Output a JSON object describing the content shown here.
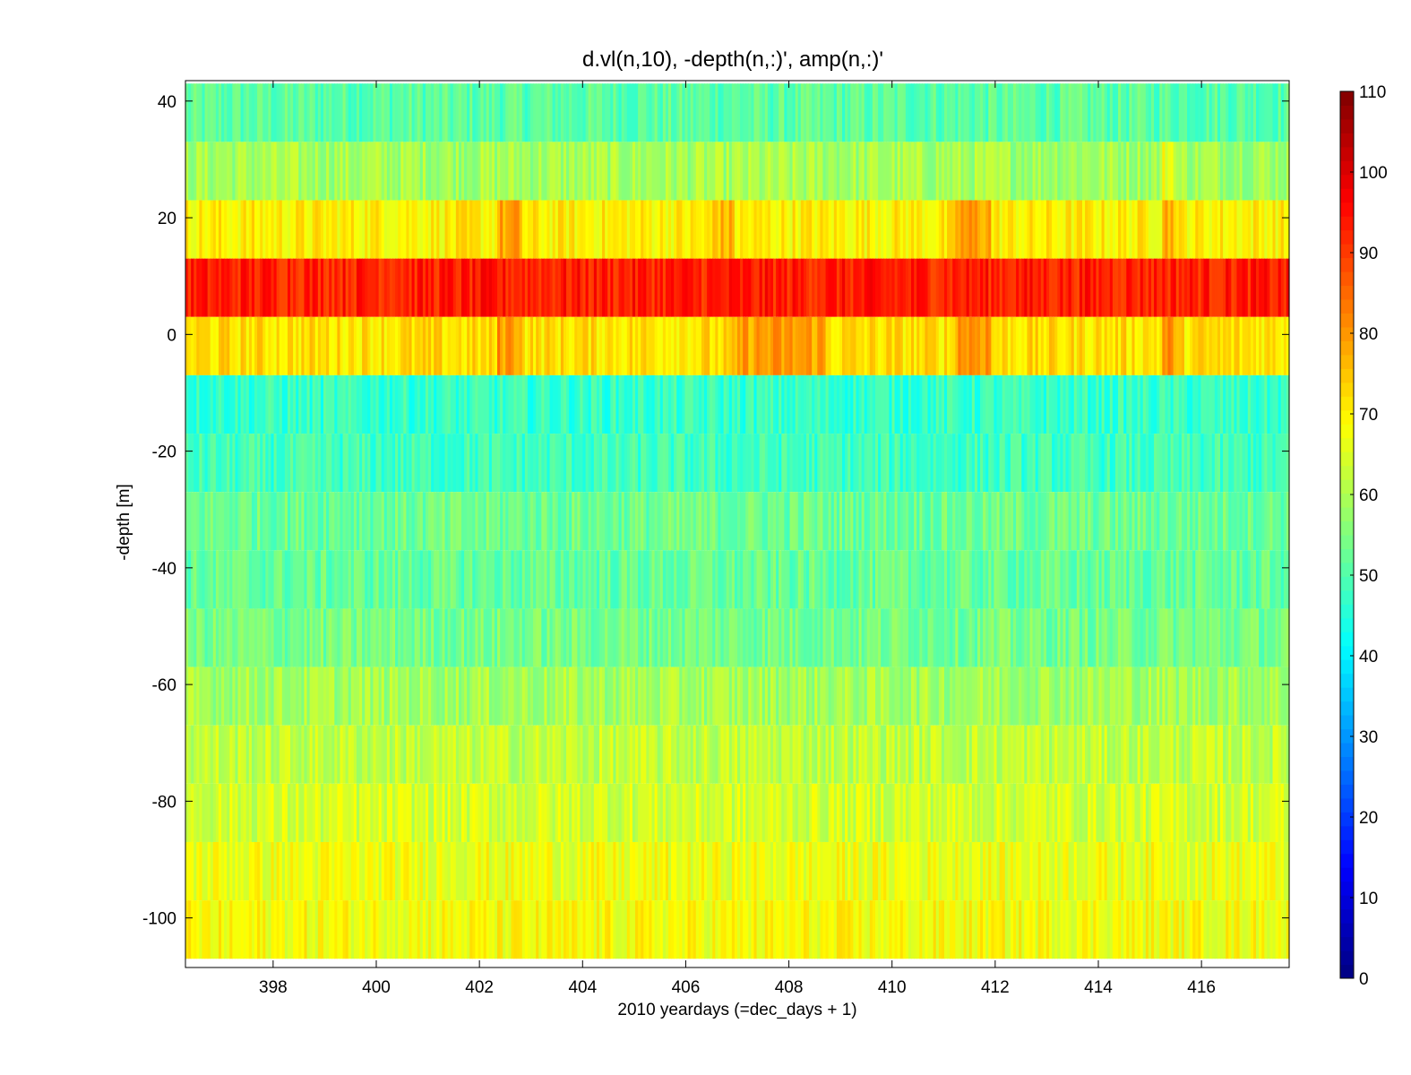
{
  "chart_data": {
    "type": "heatmap",
    "title": "d.vl(n,10), -depth(n,:)',      amp(n,:)'",
    "xlabel": "2010 yeardays (=dec_days + 1)",
    "ylabel": "-depth [m]",
    "xlim": [
      396.3,
      417.7
    ],
    "ylim": [
      -108.5,
      43.5
    ],
    "x_ticks": [
      398,
      400,
      402,
      404,
      406,
      408,
      410,
      412,
      414,
      416
    ],
    "y_ticks": [
      -100,
      -80,
      -60,
      -40,
      -20,
      0,
      20,
      40
    ],
    "colormap": "jet",
    "clim": [
      0,
      110
    ],
    "colorbar_ticks": [
      0,
      10,
      20,
      30,
      40,
      50,
      60,
      70,
      80,
      90,
      100,
      110
    ],
    "grid": false,
    "bins": [
      {
        "depth_top": 43,
        "depth_bottom": 33,
        "amp": 51
      },
      {
        "depth_top": 33,
        "depth_bottom": 23,
        "amp": 59
      },
      {
        "depth_top": 23,
        "depth_bottom": 13,
        "amp": 70
      },
      {
        "depth_top": 13,
        "depth_bottom": 3,
        "amp": 93
      },
      {
        "depth_top": 3,
        "depth_bottom": -7,
        "amp": 72
      },
      {
        "depth_top": -7,
        "depth_bottom": -17,
        "amp": 47
      },
      {
        "depth_top": -17,
        "depth_bottom": -27,
        "amp": 48
      },
      {
        "depth_top": -27,
        "depth_bottom": -37,
        "amp": 53
      },
      {
        "depth_top": -37,
        "depth_bottom": -47,
        "amp": 52
      },
      {
        "depth_top": -47,
        "depth_bottom": -57,
        "amp": 54
      },
      {
        "depth_top": -57,
        "depth_bottom": -67,
        "amp": 59
      },
      {
        "depth_top": -67,
        "depth_bottom": -77,
        "amp": 62
      },
      {
        "depth_top": -77,
        "depth_bottom": -87,
        "amp": 64
      },
      {
        "depth_top": -87,
        "depth_bottom": -97,
        "amp": 67
      },
      {
        "depth_top": -97,
        "depth_bottom": -107,
        "amp": 68
      }
    ],
    "features": [
      {
        "x_start": 402.3,
        "x_end": 402.8,
        "amp_offset": 8,
        "bins": [
          2,
          4
        ]
      },
      {
        "x_start": 406.5,
        "x_end": 406.9,
        "amp_offset": 6,
        "bins": [
          2
        ]
      },
      {
        "x_start": 407.0,
        "x_end": 408.7,
        "amp_offset": 7,
        "bins": [
          4
        ]
      },
      {
        "x_start": 411.2,
        "x_end": 411.9,
        "amp_offset": 9,
        "bins": [
          2,
          4
        ]
      },
      {
        "x_start": 415.2,
        "x_end": 415.5,
        "amp_offset": 8,
        "bins": [
          1,
          2,
          4
        ]
      }
    ]
  }
}
